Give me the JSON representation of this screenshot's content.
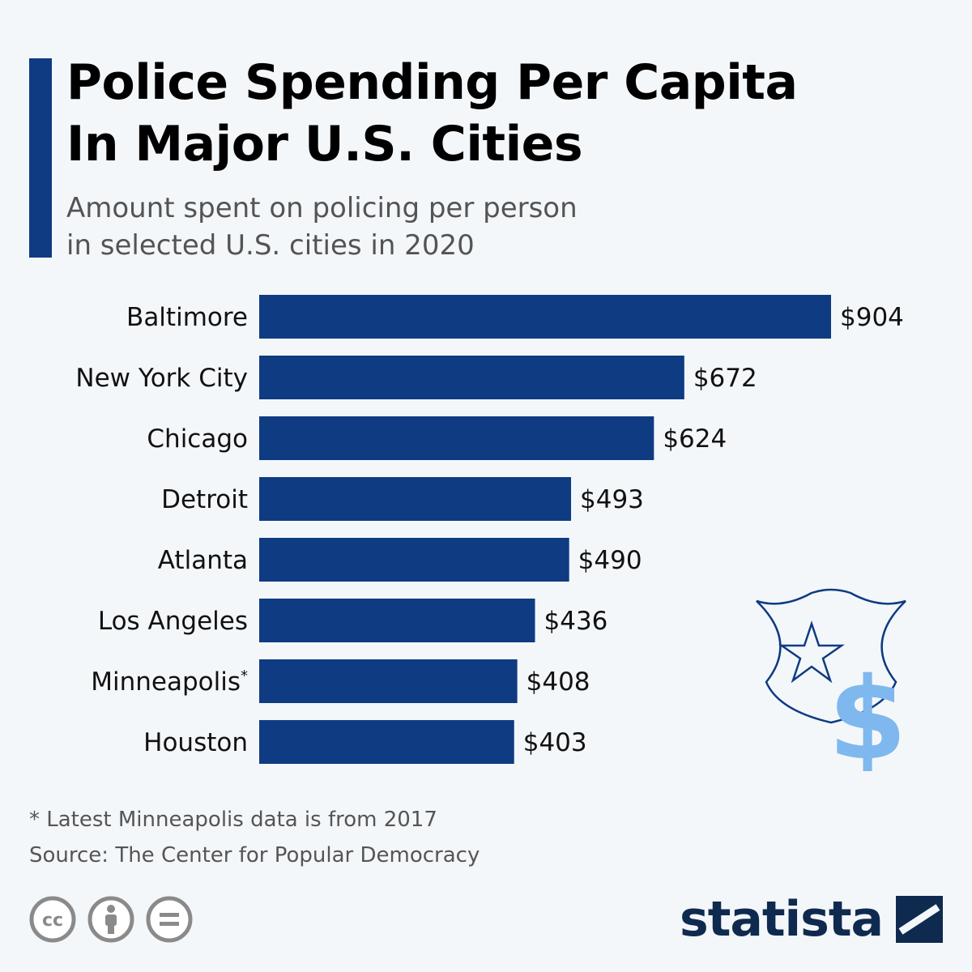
{
  "header": {
    "title_line1": "Police Spending Per Capita",
    "title_line2": "In Major U.S. Cities",
    "subtitle_line1": "Amount spent on policing per person",
    "subtitle_line2": "in selected U.S. cities in 2020"
  },
  "chart_data": {
    "type": "bar",
    "orientation": "horizontal",
    "categories": [
      "Baltimore",
      "New York City",
      "Chicago",
      "Detroit",
      "Atlanta",
      "Los Angeles",
      "Minneapolis",
      "Houston"
    ],
    "category_superscripts": [
      "",
      "",
      "",
      "",
      "",
      "",
      "*",
      ""
    ],
    "values": [
      904,
      672,
      624,
      493,
      490,
      436,
      408,
      403
    ],
    "value_labels": [
      "$904",
      "$672",
      "$624",
      "$493",
      "$490",
      "$436",
      "$408",
      "$403"
    ],
    "title": "Police Spending Per Capita In Major U.S. Cities",
    "xlabel": "",
    "ylabel": "",
    "xlim": [
      0,
      904
    ],
    "grid": false,
    "bar_color": "#0f3b82"
  },
  "footer": {
    "note": "* Latest Minneapolis data is from 2017",
    "source": "Source: The Center for Popular Democracy",
    "brand": "statista"
  },
  "icons": {
    "license": [
      "creative-commons-icon",
      "attribution-icon",
      "no-derivatives-icon"
    ],
    "badge": "police-badge-icon",
    "currency": "dollar-sign-icon"
  },
  "colors": {
    "accent": "#0f3b82",
    "badge_outline": "#0f3b82",
    "dollar": "#7fb8ee",
    "logo": "#0f2a4f"
  }
}
